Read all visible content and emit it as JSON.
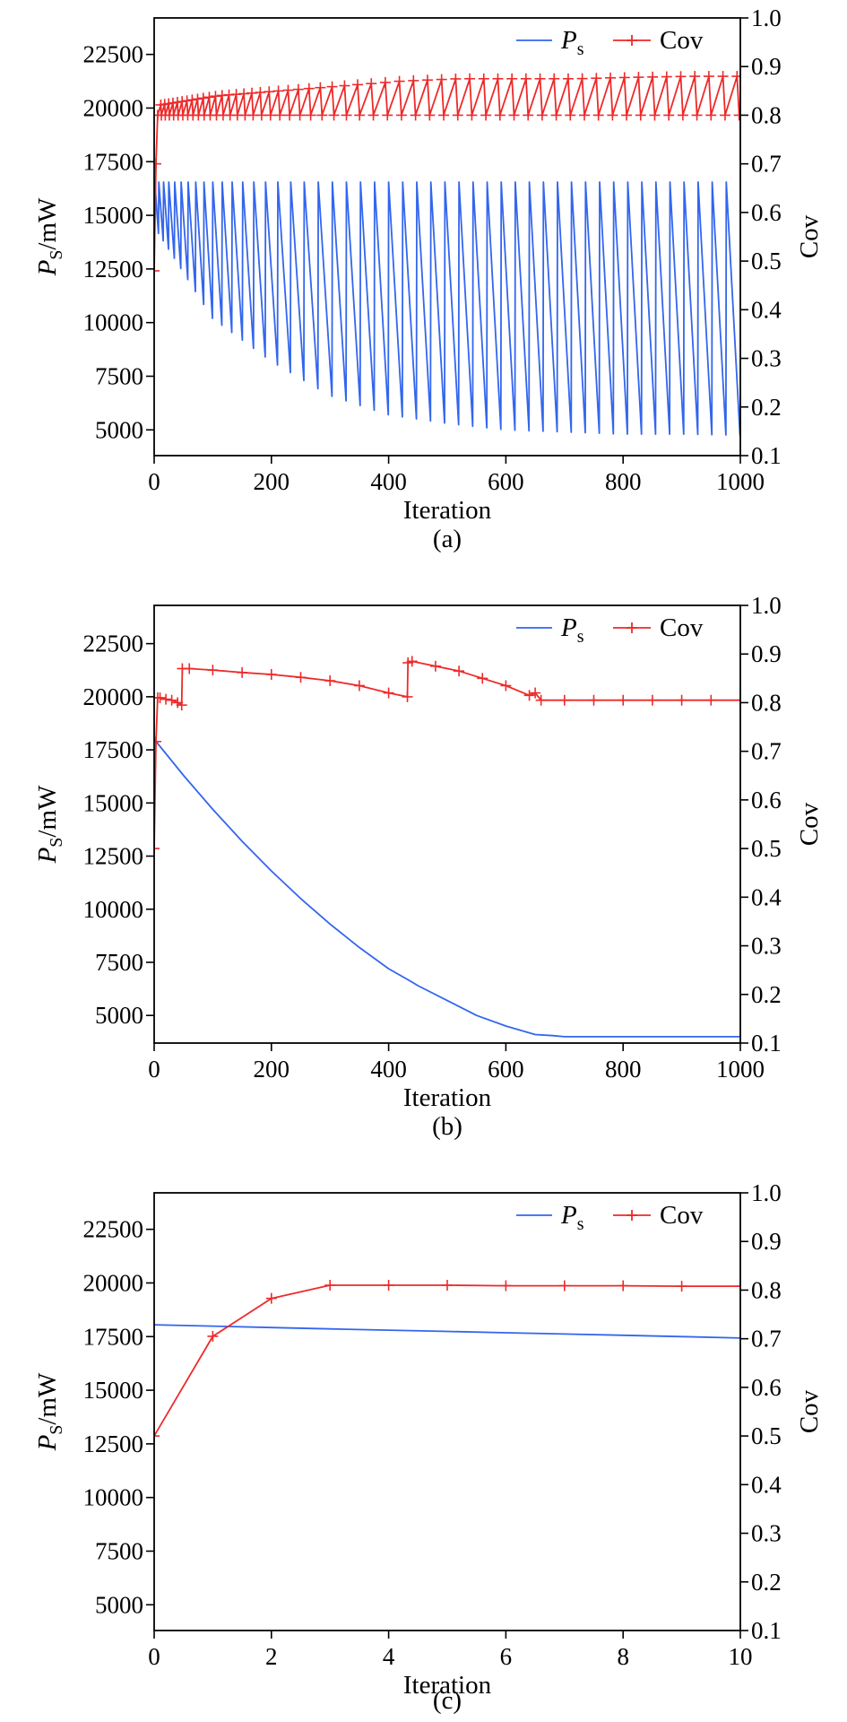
{
  "chart_data": [
    {
      "type": "line",
      "panel_label": "(a)",
      "xlabel": "Iteration",
      "ylabel_left": {
        "main": "P",
        "sub": "S",
        "unit": "/mW"
      },
      "ylabel_right": "Cov",
      "xlim": [
        0,
        1000
      ],
      "ylim_left": [
        3800,
        24200
      ],
      "ylim_right": [
        0.1,
        1.0
      ],
      "x_ticks": [
        "0",
        "200",
        "400",
        "600",
        "800",
        "1000"
      ],
      "y_left_ticks": [
        "5000",
        "7500",
        "10000",
        "12500",
        "15000",
        "17500",
        "20000",
        "22500"
      ],
      "y_right_ticks": [
        "0.1",
        "0.2",
        "0.3",
        "0.4",
        "0.5",
        "0.6",
        "0.7",
        "0.8",
        "0.9",
        "1.0"
      ],
      "legend": {
        "placement": "top-right",
        "items": [
          {
            "name_main": "P",
            "name_sub": "s",
            "color": "#3366ee"
          },
          {
            "name_main": "Cov",
            "name_sub": "",
            "color": "#ee2a2a"
          }
        ]
      },
      "series": [
        {
          "name": "Ps",
          "axis": "left",
          "color": "#3366ee",
          "marker": "none",
          "pattern": "periodic-sawtooth",
          "start": 16500,
          "cycle_starts": [
            1,
            8,
            16,
            25,
            35,
            46,
            58,
            71,
            85,
            100,
            116,
            133,
            151,
            170,
            190,
            211,
            233,
            256,
            280,
            304,
            328,
            352,
            376,
            400,
            424,
            448,
            472,
            496,
            520,
            544,
            568,
            592,
            616,
            640,
            664,
            688,
            712,
            736,
            760,
            784,
            808,
            832,
            856,
            880,
            904,
            928,
            952,
            976
          ],
          "peak": 16550,
          "trough_envelope": {
            "x": [
              0,
              100,
              200,
              300,
              400,
              500,
              600,
              700,
              800,
              900,
              1000
            ],
            "y": [
              14500,
              10200,
              8200,
              6600,
              5700,
              5300,
              5000,
              4900,
              4800,
              4800,
              4750
            ]
          },
          "final_value": 4800
        },
        {
          "name": "Cov",
          "axis": "right",
          "color": "#ee2a2a",
          "marker": "+",
          "pattern": "periodic-sawtooth",
          "start": 0.48,
          "trough": 0.8,
          "peak_envelope": {
            "x": [
              0,
              50,
              100,
              200,
              300,
              400,
              500,
              600,
              700,
              800,
              900,
              1000
            ],
            "y": [
              0.82,
              0.83,
              0.84,
              0.85,
              0.86,
              0.87,
              0.875,
              0.875,
              0.875,
              0.878,
              0.88,
              0.88
            ]
          }
        }
      ]
    },
    {
      "type": "line",
      "panel_label": "(b)",
      "xlabel": "Iteration",
      "ylabel_left": {
        "main": "P",
        "sub": "S",
        "unit": "/mW"
      },
      "ylabel_right": "Cov",
      "xlim": [
        0,
        1000
      ],
      "ylim_left": [
        3700,
        24300
      ],
      "ylim_right": [
        0.1,
        1.0
      ],
      "x_ticks": [
        "0",
        "200",
        "400",
        "600",
        "800",
        "1000"
      ],
      "y_left_ticks": [
        "5000",
        "7500",
        "10000",
        "12500",
        "15000",
        "17500",
        "20000",
        "22500"
      ],
      "y_right_ticks": [
        "0.1",
        "0.2",
        "0.3",
        "0.4",
        "0.5",
        "0.6",
        "0.7",
        "0.8",
        "0.9",
        "1.0"
      ],
      "legend": {
        "placement": "top-right",
        "items": [
          {
            "name_main": "P",
            "name_sub": "s",
            "color": "#3366ee"
          },
          {
            "name_main": "Cov",
            "name_sub": "",
            "color": "#ee2a2a"
          }
        ]
      },
      "series": [
        {
          "name": "Ps",
          "axis": "left",
          "color": "#3366ee",
          "marker": "none",
          "x": [
            0,
            50,
            100,
            150,
            200,
            250,
            300,
            350,
            400,
            435,
            450,
            500,
            550,
            600,
            650,
            680,
            700,
            750,
            800,
            850,
            900,
            950,
            1000
          ],
          "y": [
            18000,
            16300,
            14700,
            13200,
            11800,
            10500,
            9300,
            8200,
            7200,
            6650,
            6400,
            5700,
            5000,
            4500,
            4100,
            4050,
            4000,
            4000,
            4000,
            4000,
            4000,
            4000,
            4000
          ]
        },
        {
          "name": "Cov",
          "axis": "right",
          "color": "#ee2a2a",
          "marker": "+",
          "x": [
            0,
            3,
            6,
            10,
            20,
            30,
            40,
            47,
            48,
            60,
            100,
            150,
            200,
            250,
            300,
            350,
            400,
            432,
            433,
            440,
            480,
            520,
            560,
            600,
            640,
            650,
            660,
            700,
            750,
            800,
            850,
            900,
            950,
            1000
          ],
          "y": [
            0.5,
            0.72,
            0.81,
            0.81,
            0.807,
            0.805,
            0.8,
            0.795,
            0.87,
            0.87,
            0.867,
            0.862,
            0.858,
            0.852,
            0.845,
            0.835,
            0.82,
            0.812,
            0.882,
            0.885,
            0.875,
            0.865,
            0.85,
            0.835,
            0.815,
            0.82,
            0.805,
            0.805,
            0.805,
            0.805,
            0.805,
            0.805,
            0.805,
            0.805
          ]
        }
      ]
    },
    {
      "type": "line",
      "panel_label": "(c)",
      "xlabel": "Iteration",
      "ylabel_left": {
        "main": "P",
        "sub": "S",
        "unit": "/mW"
      },
      "ylabel_right": "Cov",
      "xlim": [
        0,
        10
      ],
      "ylim_left": [
        3800,
        24200
      ],
      "ylim_right": [
        0.1,
        1.0
      ],
      "x_ticks": [
        "0",
        "2",
        "4",
        "6",
        "8",
        "10"
      ],
      "y_left_ticks": [
        "5000",
        "7500",
        "10000",
        "12500",
        "15000",
        "17500",
        "20000",
        "22500"
      ],
      "y_right_ticks": [
        "0.1",
        "0.2",
        "0.3",
        "0.4",
        "0.5",
        "0.6",
        "0.7",
        "0.8",
        "0.9",
        "1.0"
      ],
      "legend": {
        "placement": "top-right",
        "items": [
          {
            "name_main": "P",
            "name_sub": "s",
            "color": "#3366ee"
          },
          {
            "name_main": "Cov",
            "name_sub": "",
            "color": "#ee2a2a"
          }
        ]
      },
      "series": [
        {
          "name": "Ps",
          "axis": "left",
          "color": "#3366ee",
          "marker": "none",
          "x": [
            0,
            1,
            2,
            3,
            4,
            5,
            6,
            7,
            8,
            9,
            10
          ],
          "y": [
            18050,
            17990,
            17920,
            17860,
            17800,
            17740,
            17680,
            17620,
            17560,
            17500,
            17430
          ]
        },
        {
          "name": "Cov",
          "axis": "right",
          "color": "#ee2a2a",
          "marker": "+",
          "x": [
            0,
            1,
            2,
            3,
            4,
            5,
            6,
            7,
            8,
            9,
            10
          ],
          "y": [
            0.5,
            0.705,
            0.783,
            0.81,
            0.81,
            0.81,
            0.809,
            0.809,
            0.809,
            0.808,
            0.808
          ]
        }
      ]
    }
  ]
}
